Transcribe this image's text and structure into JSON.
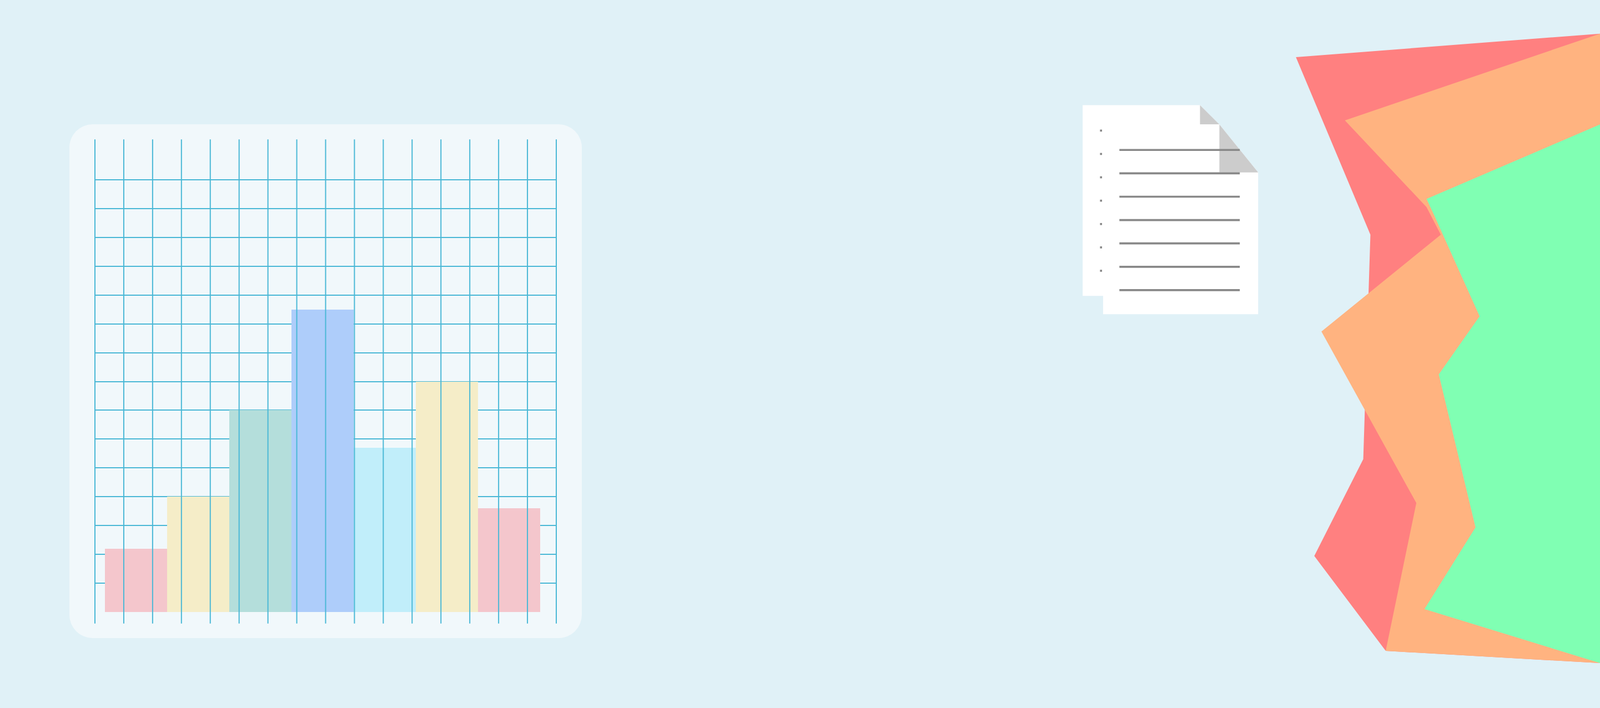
{
  "chart_data": {
    "type": "bar",
    "categories": [
      null,
      null,
      null,
      null,
      null,
      null,
      null
    ],
    "values": [
      2.2,
      4,
      7,
      10.5,
      5.7,
      8,
      3.6
    ],
    "colors": [
      "#f4c6cc",
      "#f5edc8",
      "#b4dedb",
      "#aecdfa",
      "#c1eefa",
      "#f5edc8",
      "#f4c6cc"
    ],
    "ylim": [
      0,
      16
    ],
    "yticks": [
      0,
      1,
      2,
      3,
      4,
      5,
      6,
      7,
      8,
      9,
      10,
      11,
      12,
      13,
      14,
      15,
      16
    ],
    "grid": true,
    "tick_labels": false
  }
}
